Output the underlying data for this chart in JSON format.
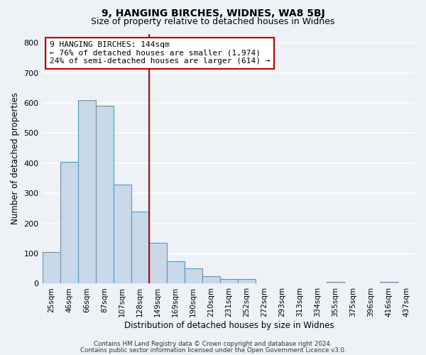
{
  "title1": "9, HANGING BIRCHES, WIDNES, WA8 5BJ",
  "title2": "Size of property relative to detached houses in Widnes",
  "xlabel": "Distribution of detached houses by size in Widnes",
  "ylabel": "Number of detached properties",
  "bin_labels": [
    "25sqm",
    "46sqm",
    "66sqm",
    "87sqm",
    "107sqm",
    "128sqm",
    "149sqm",
    "169sqm",
    "190sqm",
    "210sqm",
    "231sqm",
    "252sqm",
    "272sqm",
    "293sqm",
    "313sqm",
    "334sqm",
    "355sqm",
    "375sqm",
    "396sqm",
    "416sqm",
    "437sqm"
  ],
  "bar_heights": [
    105,
    405,
    610,
    590,
    330,
    240,
    135,
    75,
    50,
    25,
    15,
    15,
    0,
    0,
    0,
    0,
    5,
    0,
    0,
    5,
    0
  ],
  "bar_color": "#c8d8e8",
  "bar_edgecolor": "#5599bb",
  "vline_color": "#cc0000",
  "annotation_title": "9 HANGING BIRCHES: 144sqm",
  "annotation_line1": "← 76% of detached houses are smaller (1,974)",
  "annotation_line2": "24% of semi-detached houses are larger (614) →",
  "annotation_box_edgecolor": "#cc0000",
  "ylim": [
    0,
    830
  ],
  "yticks": [
    0,
    100,
    200,
    300,
    400,
    500,
    600,
    700,
    800
  ],
  "footer1": "Contains HM Land Registry data © Crown copyright and database right 2024.",
  "footer2": "Contains public sector information licensed under the Open Government Licence v3.0.",
  "background_color": "#eef2f7",
  "grid_color": "#ffffff"
}
